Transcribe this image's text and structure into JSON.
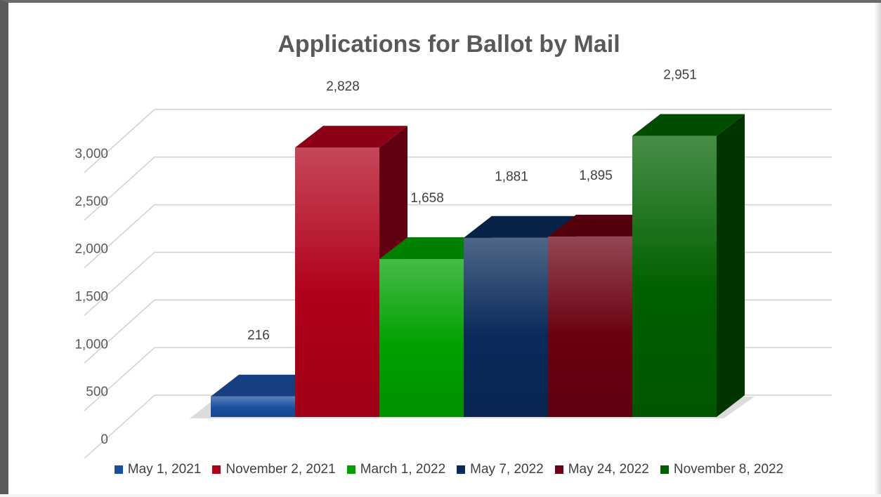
{
  "chart_data": {
    "type": "bar",
    "title": "Applications for Ballot by Mail",
    "categories": [
      "May 1, 2021",
      "November 2, 2021",
      "March 1, 2022",
      "May 7, 2022",
      "May 24, 2022",
      "November 8, 2022"
    ],
    "values": [
      216,
      2828,
      1658,
      1881,
      1895,
      2951
    ],
    "value_labels": [
      "216",
      "2,828",
      "1,658",
      "1,881",
      "1,895",
      "2,951"
    ],
    "ylim": [
      0,
      3000
    ],
    "yticks": [
      0,
      500,
      1000,
      1500,
      2000,
      2500,
      3000
    ],
    "ytick_labels": [
      "0",
      "500",
      "1,000",
      "1,500",
      "2,000",
      "2,500",
      "3,000"
    ],
    "grid": true,
    "legend": "bottom",
    "colors": [
      "#1a4fa0",
      "#b0001a",
      "#00a000",
      "#0a2a5a",
      "#6a0010",
      "#006000"
    ]
  }
}
